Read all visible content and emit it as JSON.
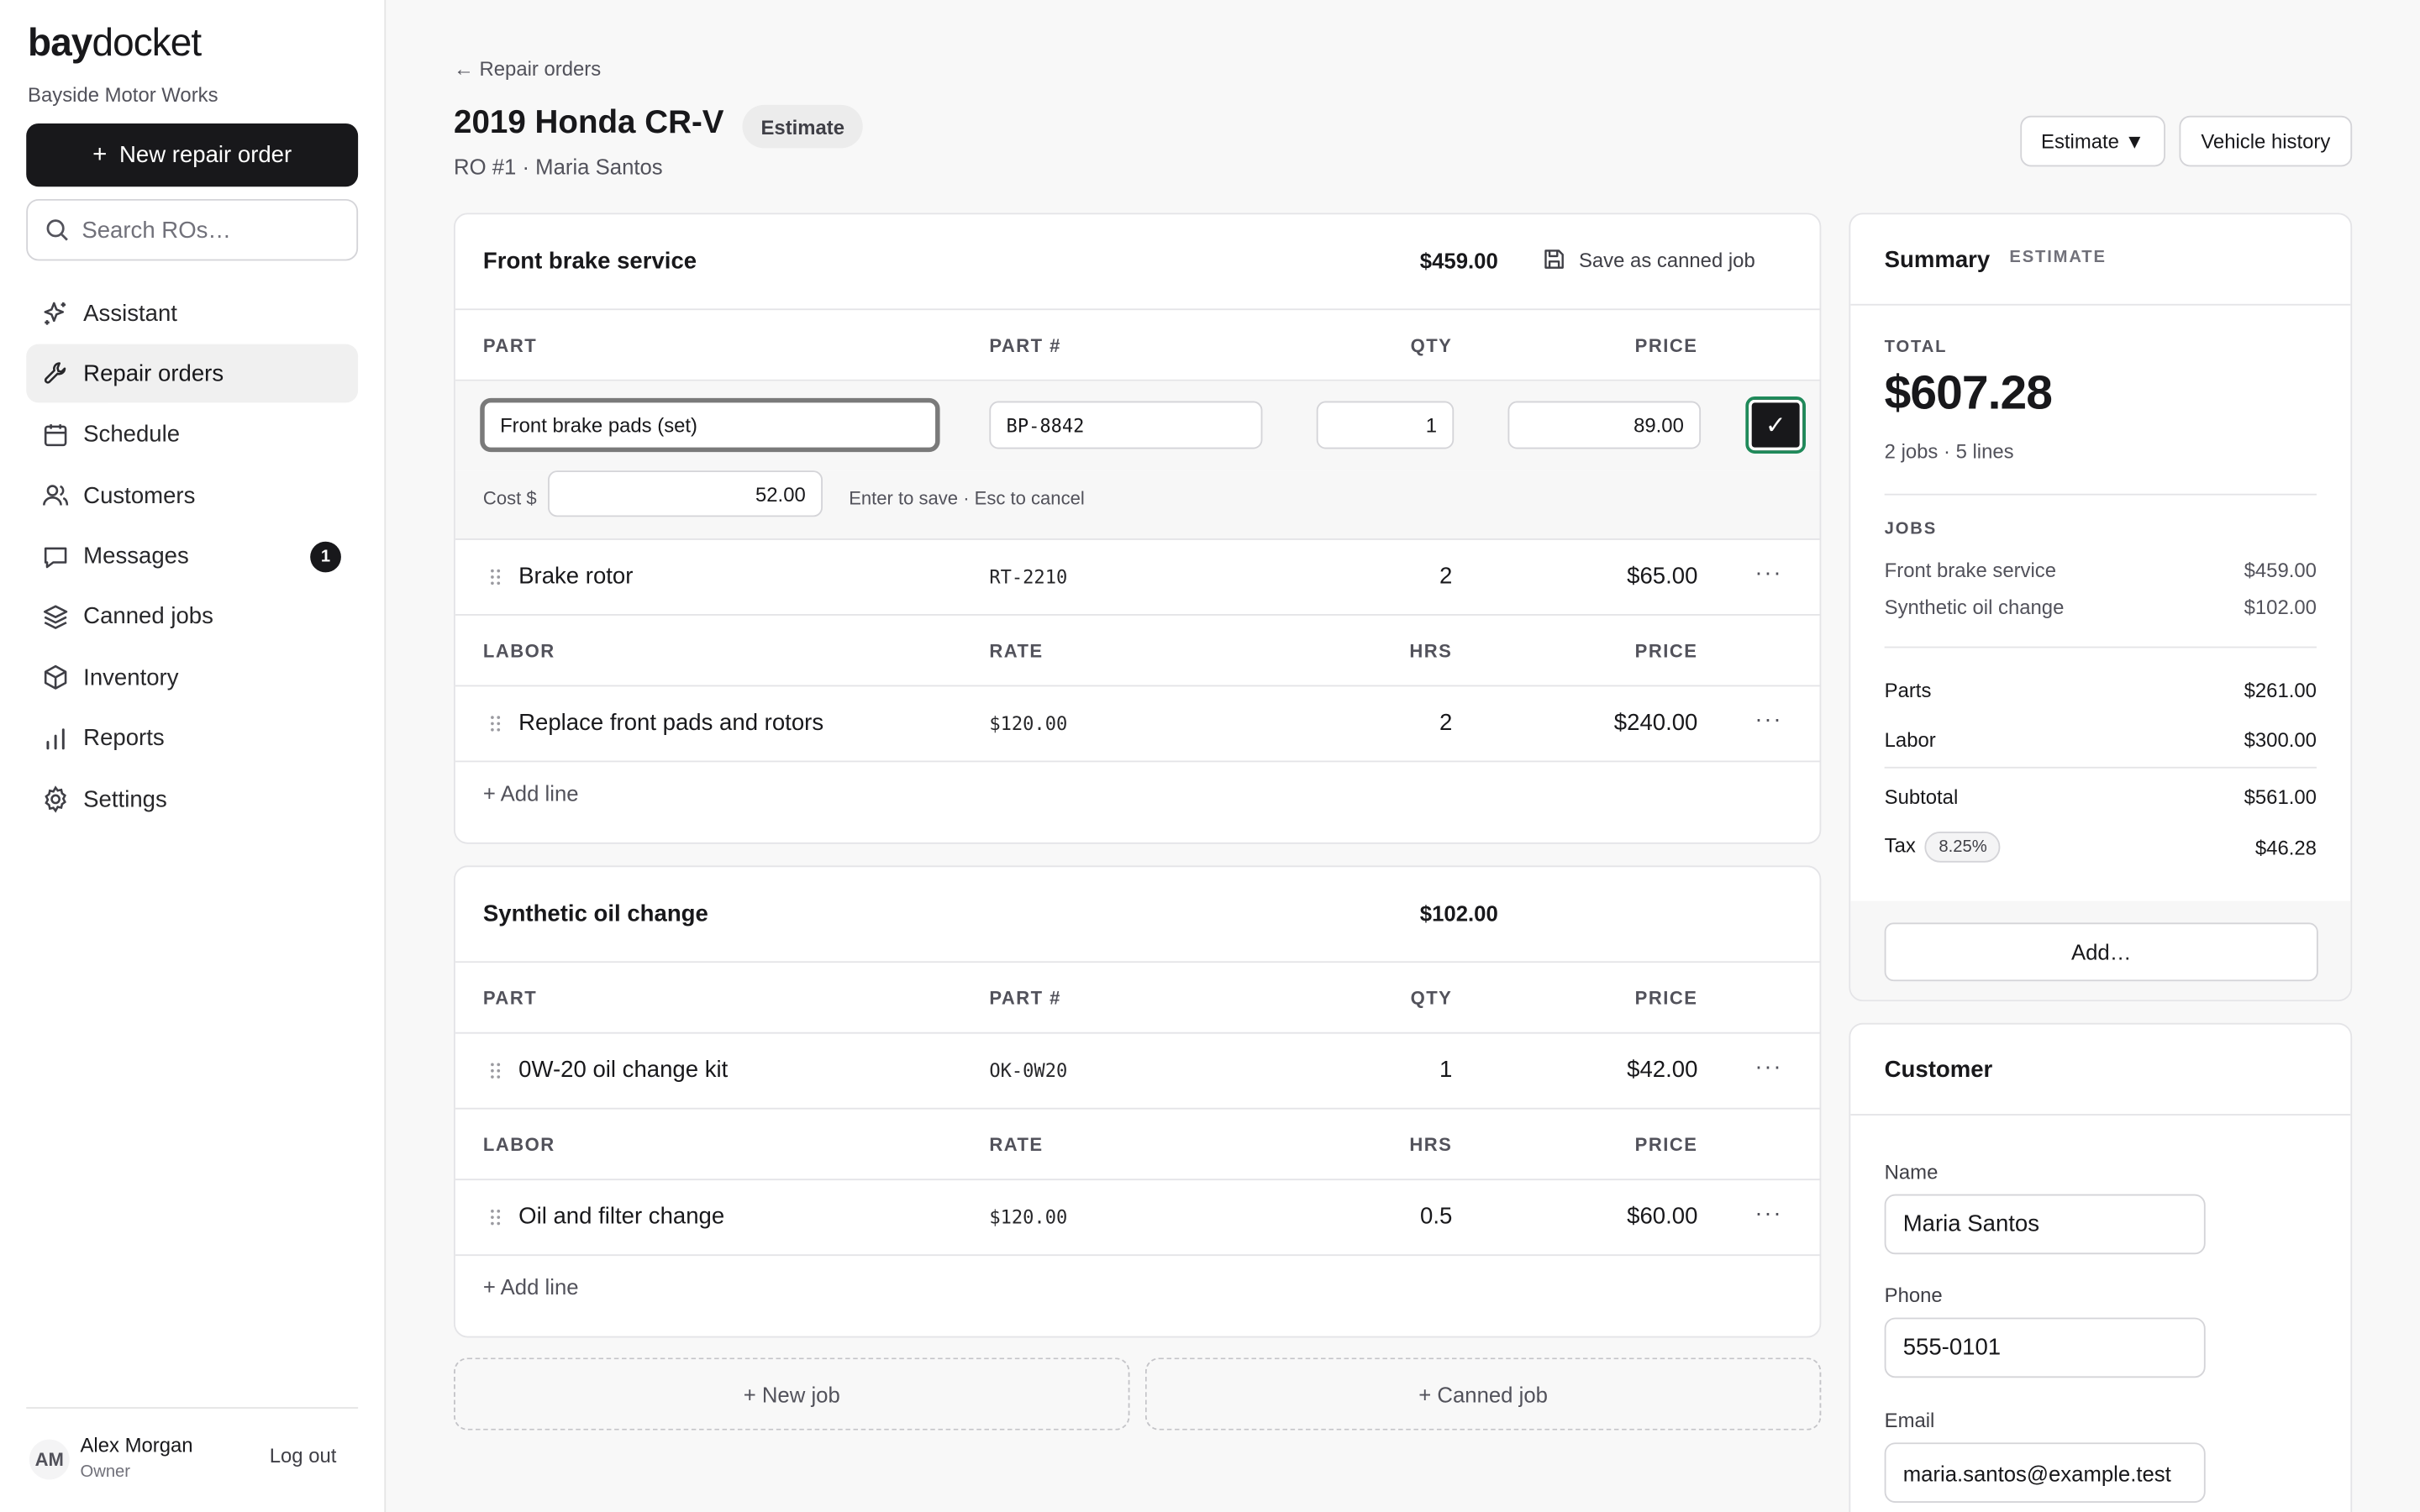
{
  "app": {
    "brand_bold": "bay",
    "brand_light": "docket",
    "shop_name": "Bayside Motor Works",
    "new_ro_label": "New repair order",
    "search_placeholder": "Search ROs…"
  },
  "nav": [
    {
      "label": "Assistant",
      "icon": "sparkle-icon"
    },
    {
      "label": "Repair orders",
      "icon": "wrench-icon",
      "active": true
    },
    {
      "label": "Schedule",
      "icon": "calendar-icon"
    },
    {
      "label": "Customers",
      "icon": "users-icon"
    },
    {
      "label": "Messages",
      "icon": "message-icon",
      "badge": "1"
    },
    {
      "label": "Canned jobs",
      "icon": "layers-icon"
    },
    {
      "label": "Inventory",
      "icon": "box-icon"
    },
    {
      "label": "Reports",
      "icon": "bar-chart-icon"
    },
    {
      "label": "Settings",
      "icon": "gear-icon"
    }
  ],
  "user": {
    "initials": "AM",
    "name": "Alex Morgan",
    "role": "Owner",
    "logout_label": "Log out"
  },
  "header": {
    "back_label": "← Repair orders",
    "title": "2019 Honda CR-V",
    "status": "Estimate",
    "subtitle": "RO #1 · Maria Santos",
    "status_button": "Estimate ▼",
    "history_button": "Vehicle history"
  },
  "jobs": [
    {
      "title": "Front brake service",
      "total": "$459.00",
      "save_canned_label": "Save as canned job",
      "parts_header": {
        "c1": "PART",
        "c2": "PART #",
        "c3": "QTY",
        "c4": "PRICE"
      },
      "editing": {
        "description": "Front brake pads (set)",
        "part_number": "BP-8842",
        "qty": "1",
        "price": "89.00",
        "cost_label": "Cost $",
        "cost": "52.00",
        "hint": "Enter to save · Esc to cancel",
        "confirm": "✓"
      },
      "parts": [
        {
          "desc": "Brake rotor",
          "pn": "RT-2210",
          "qty": "2",
          "price": "$65.00"
        }
      ],
      "labor_header": {
        "c1": "LABOR",
        "c2": "RATE",
        "c3": "HRS",
        "c4": "PRICE"
      },
      "labor": [
        {
          "desc": "Replace front pads and rotors",
          "rate": "$120.00",
          "hrs": "2",
          "price": "$240.00"
        }
      ],
      "add_line": "+ Add line"
    },
    {
      "title": "Synthetic oil change",
      "total": "$102.00",
      "parts_header": {
        "c1": "PART",
        "c2": "PART #",
        "c3": "QTY",
        "c4": "PRICE"
      },
      "parts": [
        {
          "desc": "0W-20 oil change kit",
          "pn": "OK-0W20",
          "qty": "1",
          "price": "$42.00"
        }
      ],
      "labor_header": {
        "c1": "LABOR",
        "c2": "RATE",
        "c3": "HRS",
        "c4": "PRICE"
      },
      "labor": [
        {
          "desc": "Oil and filter change",
          "rate": "$120.00",
          "hrs": "0.5",
          "price": "$60.00"
        }
      ],
      "add_line": "+ Add line"
    }
  ],
  "actions": {
    "new_job": "+ New job",
    "canned_job": "+ Canned job"
  },
  "summary": {
    "title": "Summary",
    "tag": "ESTIMATE",
    "total_label": "TOTAL",
    "total": "$607.28",
    "meta": "2 jobs · 5 lines",
    "jobs_label": "JOBS",
    "jobs": [
      {
        "name": "Front brake service",
        "amount": "$459.00"
      },
      {
        "name": "Synthetic oil change",
        "amount": "$102.00"
      }
    ],
    "parts_label": "Parts",
    "parts": "$261.00",
    "labor_label": "Labor",
    "labor": "$300.00",
    "subtotal_label": "Subtotal",
    "subtotal": "$561.00",
    "tax_label": "Tax",
    "tax_rate": "8.25%",
    "tax": "$46.28",
    "add_label": "Add…"
  },
  "customer": {
    "title": "Customer",
    "name_label": "Name",
    "name": "Maria Santos",
    "phone_label": "Phone",
    "phone": "555-0101",
    "email_label": "Email",
    "email": "maria.santos@example.test"
  }
}
